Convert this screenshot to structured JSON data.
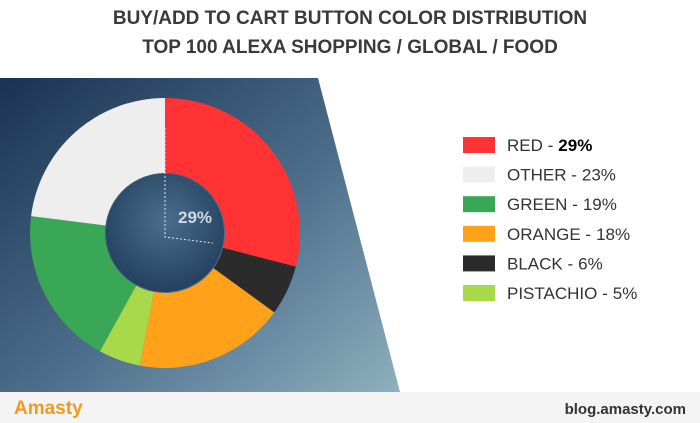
{
  "chart_data": {
    "type": "donut",
    "title": "BUY/ADD TO CART BUTTON COLOR DISTRIBUTION",
    "subtitle": "TOP 100 ALEXA SHOPPING / GLOBAL / FOOD",
    "categories": [
      "RED -",
      "BLACK -",
      "ORANGE -",
      "PISTACHIO -",
      "GREEN -",
      "OTHER -"
    ],
    "values": [
      29,
      6,
      18,
      5,
      19,
      23
    ],
    "value_labels": [
      "29%",
      "6%",
      "18%",
      "5%",
      "19%",
      "23%"
    ],
    "colors": [
      "#ff3333",
      "#2b2b2b",
      "#ffa21a",
      "#a8d94a",
      "#3aa757",
      "#eeeeee"
    ],
    "brand": "Amasty",
    "source": "blog.amasty.com"
  }
}
